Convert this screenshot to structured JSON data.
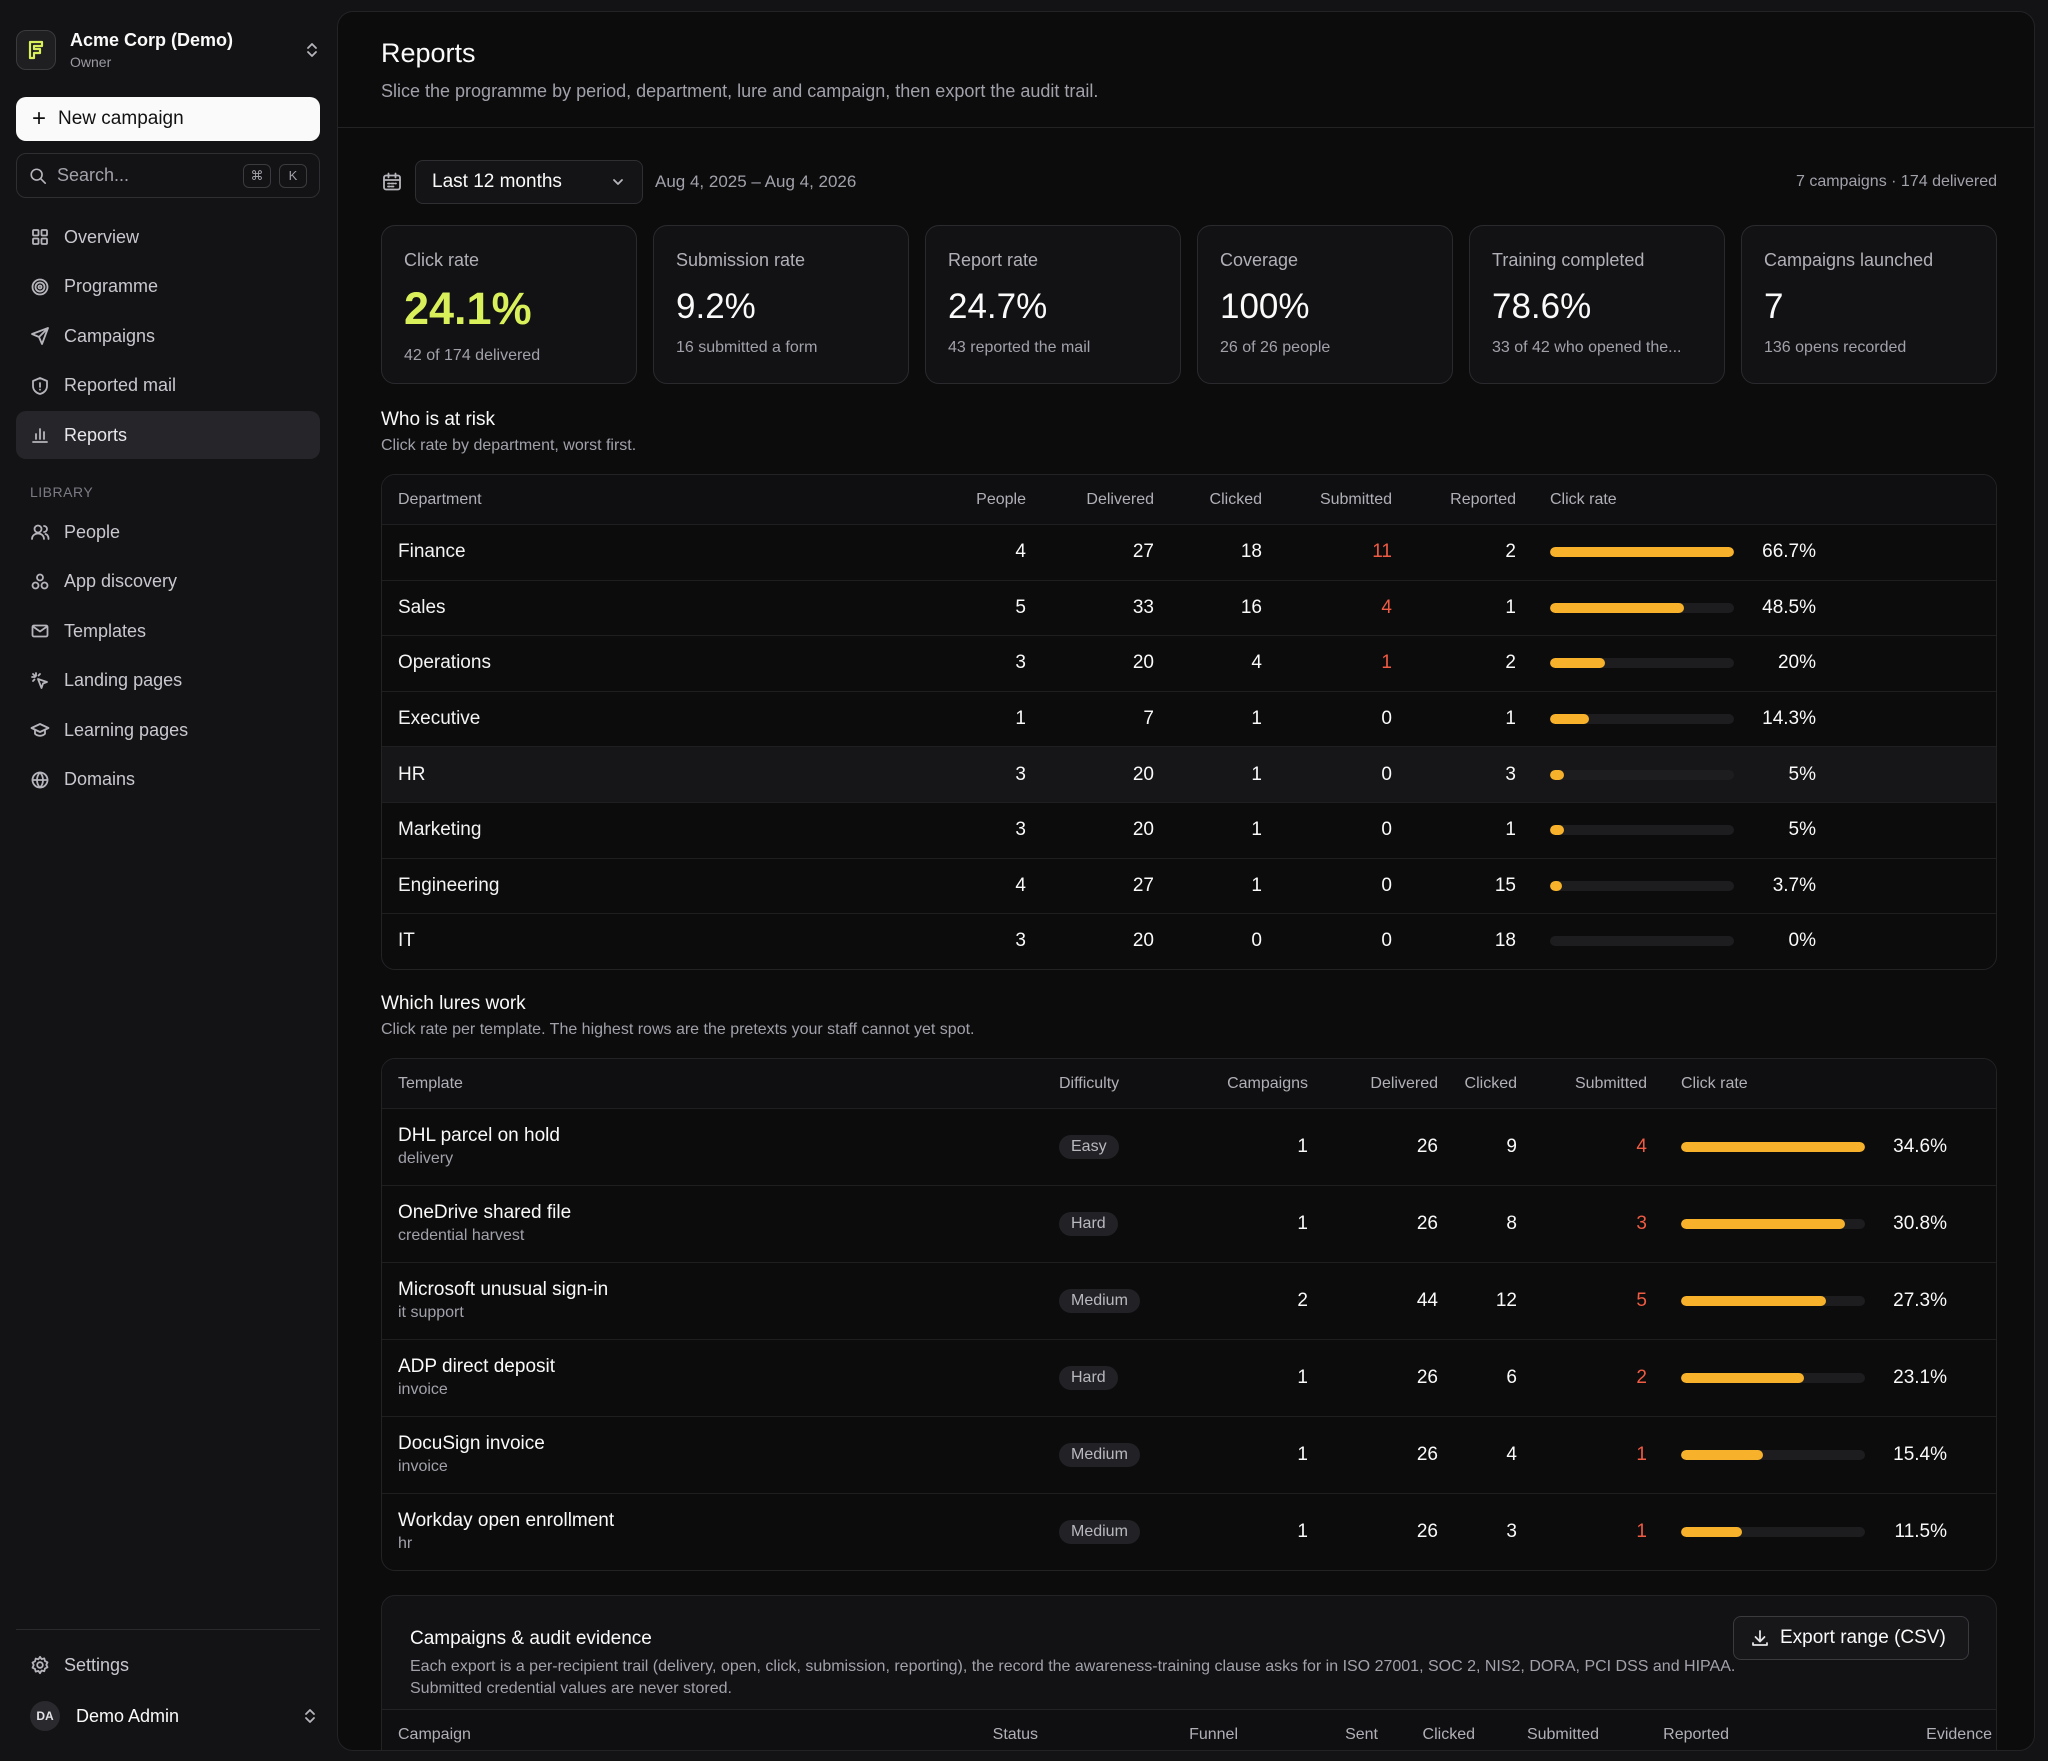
{
  "org": {
    "name": "Acme Corp (Demo)",
    "role": "Owner"
  },
  "sidebar": {
    "new_campaign": "New campaign",
    "search_placeholder": "Search...",
    "kbd_cmd": "⌘",
    "kbd_k": "K",
    "items": [
      {
        "label": "Overview",
        "icon": "grid-icon"
      },
      {
        "label": "Programme",
        "icon": "target-icon"
      },
      {
        "label": "Campaigns",
        "icon": "send-icon"
      },
      {
        "label": "Reported mail",
        "icon": "shield-icon"
      },
      {
        "label": "Reports",
        "icon": "bar-chart-icon",
        "active": true
      }
    ],
    "library_label": "LIBRARY",
    "library": [
      {
        "label": "People",
        "icon": "users-icon"
      },
      {
        "label": "App discovery",
        "icon": "apps-icon"
      },
      {
        "label": "Templates",
        "icon": "mail-icon"
      },
      {
        "label": "Landing pages",
        "icon": "pointer-icon"
      },
      {
        "label": "Learning pages",
        "icon": "graduation-icon"
      },
      {
        "label": "Domains",
        "icon": "globe-icon"
      }
    ],
    "settings": "Settings",
    "user": {
      "initials": "DA",
      "name": "Demo Admin"
    }
  },
  "page": {
    "title": "Reports",
    "subtitle": "Slice the programme by period, department, lure and campaign, then export the audit trail."
  },
  "filter": {
    "period": "Last 12 months",
    "range": "Aug 4, 2025 – Aug 4, 2026",
    "summary": "7 campaigns · 174 delivered"
  },
  "stats": [
    {
      "label": "Click rate",
      "value": "24.1%",
      "hint": "42 of 174 delivered",
      "accent": true
    },
    {
      "label": "Submission rate",
      "value": "9.2%",
      "hint": "16 submitted a form"
    },
    {
      "label": "Report rate",
      "value": "24.7%",
      "hint": "43 reported the mail"
    },
    {
      "label": "Coverage",
      "value": "100%",
      "hint": "26 of 26 people"
    },
    {
      "label": "Training completed",
      "value": "78.6%",
      "hint": "33 of 42 who opened the..."
    },
    {
      "label": "Campaigns launched",
      "value": "7",
      "hint": "136 opens recorded"
    }
  ],
  "risk": {
    "title": "Who is at risk",
    "subtitle": "Click rate by department, worst first.",
    "headers": [
      "Department",
      "People",
      "Delivered",
      "Clicked",
      "Submitted",
      "Reported",
      "Click rate"
    ],
    "rows": [
      {
        "dept": "Finance",
        "people": "4",
        "delivered": "27",
        "clicked": "18",
        "submitted": "11",
        "reported": "2",
        "rate": "66.7%",
        "fill": 66.7
      },
      {
        "dept": "Sales",
        "people": "5",
        "delivered": "33",
        "clicked": "16",
        "submitted": "4",
        "reported": "1",
        "rate": "48.5%",
        "fill": 48.5
      },
      {
        "dept": "Operations",
        "people": "3",
        "delivered": "20",
        "clicked": "4",
        "submitted": "1",
        "reported": "2",
        "rate": "20%",
        "fill": 20
      },
      {
        "dept": "Executive",
        "people": "1",
        "delivered": "7",
        "clicked": "1",
        "submitted": "0",
        "reported": "1",
        "rate": "14.3%",
        "fill": 14.3
      },
      {
        "dept": "HR",
        "people": "3",
        "delivered": "20",
        "clicked": "1",
        "submitted": "0",
        "reported": "3",
        "rate": "5%",
        "fill": 5
      },
      {
        "dept": "Marketing",
        "people": "3",
        "delivered": "20",
        "clicked": "1",
        "submitted": "0",
        "reported": "1",
        "rate": "5%",
        "fill": 5
      },
      {
        "dept": "Engineering",
        "people": "4",
        "delivered": "27",
        "clicked": "1",
        "submitted": "0",
        "reported": "15",
        "rate": "3.7%",
        "fill": 3.7
      },
      {
        "dept": "IT",
        "people": "3",
        "delivered": "20",
        "clicked": "0",
        "submitted": "0",
        "reported": "18",
        "rate": "0%",
        "fill": 0
      }
    ]
  },
  "lures": {
    "title": "Which lures work",
    "subtitle": "Click rate per template. The highest rows are the pretexts your staff cannot yet spot.",
    "headers": [
      "Template",
      "Difficulty",
      "Campaigns",
      "Delivered",
      "Clicked",
      "Submitted",
      "Click rate"
    ],
    "rows": [
      {
        "name": "DHL parcel on hold",
        "category": "delivery",
        "difficulty": "Easy",
        "campaigns": "1",
        "delivered": "26",
        "clicked": "9",
        "submitted": "4",
        "rate": "34.6%",
        "fill": 34.6
      },
      {
        "name": "OneDrive shared file",
        "category": "credential harvest",
        "difficulty": "Hard",
        "campaigns": "1",
        "delivered": "26",
        "clicked": "8",
        "submitted": "3",
        "rate": "30.8%",
        "fill": 30.8
      },
      {
        "name": "Microsoft unusual sign-in",
        "category": "it support",
        "difficulty": "Medium",
        "campaigns": "2",
        "delivered": "44",
        "clicked": "12",
        "submitted": "5",
        "rate": "27.3%",
        "fill": 27.3
      },
      {
        "name": "ADP direct deposit",
        "category": "invoice",
        "difficulty": "Hard",
        "campaigns": "1",
        "delivered": "26",
        "clicked": "6",
        "submitted": "2",
        "rate": "23.1%",
        "fill": 23.1
      },
      {
        "name": "DocuSign invoice",
        "category": "invoice",
        "difficulty": "Medium",
        "campaigns": "1",
        "delivered": "26",
        "clicked": "4",
        "submitted": "1",
        "rate": "15.4%",
        "fill": 15.4
      },
      {
        "name": "Workday open enrollment",
        "category": "hr",
        "difficulty": "Medium",
        "campaigns": "1",
        "delivered": "26",
        "clicked": "3",
        "submitted": "1",
        "rate": "11.5%",
        "fill": 11.5
      }
    ]
  },
  "audit": {
    "title": "Campaigns & audit evidence",
    "description": "Each export is a per-recipient trail (delivery, open, click, submission, reporting), the record the awareness-training clause asks for in ISO 27001, SOC 2, NIS2, DORA, PCI DSS and HIPAA. Submitted credential values are never stored.",
    "export_label": "Export range (CSV)",
    "headers": [
      "Campaign",
      "Status",
      "Funnel",
      "Sent",
      "Clicked",
      "Submitted",
      "Reported",
      "Evidence"
    ]
  },
  "colors": {
    "accent": "#d9f05b",
    "bar": "#f7b12a",
    "danger": "#ef5b43",
    "background": "#0c0c0d"
  }
}
